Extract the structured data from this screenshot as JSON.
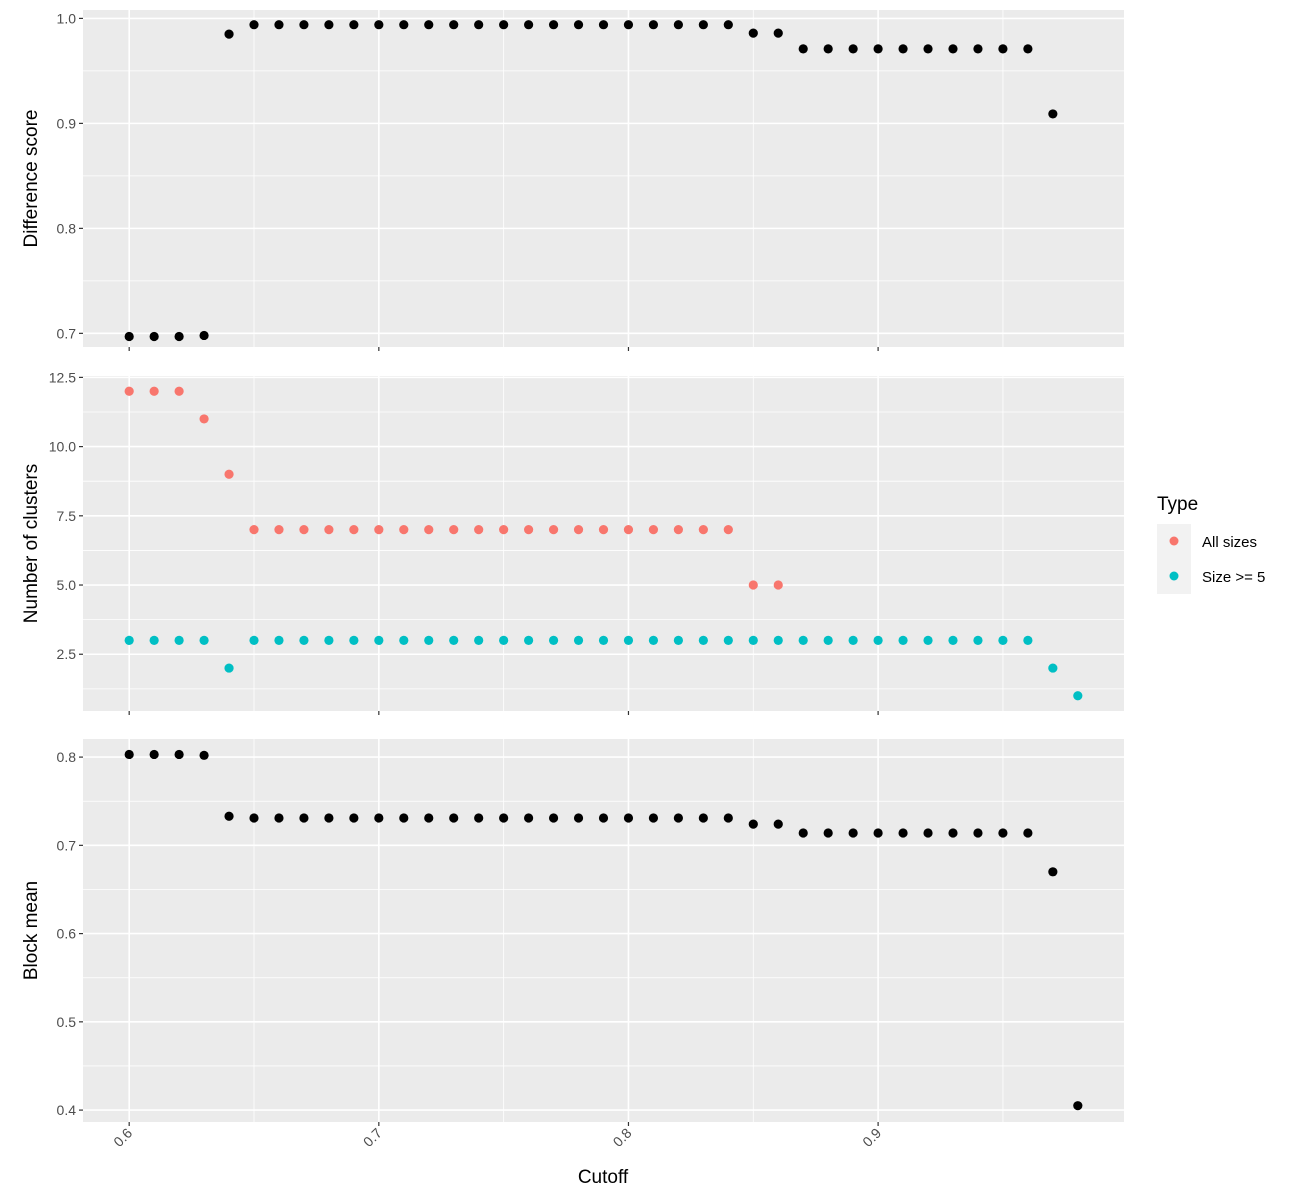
{
  "chart_data": {
    "type": "scatter",
    "x_axis": {
      "label": "Cutoff",
      "ticks": [
        "0.6",
        "0.7",
        "0.8",
        "0.9"
      ],
      "tick_values": [
        0.6,
        0.7,
        0.8,
        0.9
      ],
      "range": [
        0.5815,
        0.9985
      ]
    },
    "panels": [
      {
        "ylabel": "Difference score",
        "ylim": [
          0.687,
          1.008
        ],
        "yticks": [
          "0.7",
          "0.8",
          "0.9",
          "1.0"
        ],
        "ytick_values": [
          0.7,
          0.8,
          0.9,
          1.0
        ],
        "series": [
          {
            "color": "#000000",
            "x": [
              0.6,
              0.61,
              0.62,
              0.63,
              0.64,
              0.65,
              0.66,
              0.67,
              0.68,
              0.69,
              0.7,
              0.71,
              0.72,
              0.73,
              0.74,
              0.75,
              0.76,
              0.77,
              0.78,
              0.79,
              0.8,
              0.81,
              0.82,
              0.83,
              0.84,
              0.85,
              0.86,
              0.87,
              0.88,
              0.89,
              0.9,
              0.91,
              0.92,
              0.93,
              0.94,
              0.95,
              0.96,
              0.97
            ],
            "y": [
              0.697,
              0.697,
              0.697,
              0.698,
              0.985,
              0.994,
              0.994,
              0.994,
              0.994,
              0.994,
              0.994,
              0.994,
              0.994,
              0.994,
              0.994,
              0.994,
              0.994,
              0.994,
              0.994,
              0.994,
              0.994,
              0.994,
              0.994,
              0.994,
              0.994,
              0.986,
              0.986,
              0.971,
              0.971,
              0.971,
              0.971,
              0.971,
              0.971,
              0.971,
              0.971,
              0.971,
              0.971,
              0.909
            ]
          }
        ]
      },
      {
        "ylabel": "Number of clusters",
        "ylim": [
          0.45,
          12.55
        ],
        "yticks": [
          "2.5",
          "5.0",
          "7.5",
          "10.0",
          "12.5"
        ],
        "ytick_values": [
          2.5,
          5.0,
          7.5,
          10.0,
          12.5
        ],
        "series": [
          {
            "name": "All sizes",
            "color": "#F8766D",
            "x": [
              0.6,
              0.61,
              0.62,
              0.63,
              0.64,
              0.65,
              0.66,
              0.67,
              0.68,
              0.69,
              0.7,
              0.71,
              0.72,
              0.73,
              0.74,
              0.75,
              0.76,
              0.77,
              0.78,
              0.79,
              0.8,
              0.81,
              0.82,
              0.83,
              0.84,
              0.85,
              0.86
            ],
            "y": [
              12,
              12,
              12,
              11,
              9,
              7,
              7,
              7,
              7,
              7,
              7,
              7,
              7,
              7,
              7,
              7,
              7,
              7,
              7,
              7,
              7,
              7,
              7,
              7,
              7,
              5,
              5
            ]
          },
          {
            "name": "Size >= 5",
            "color": "#00BFC4",
            "x": [
              0.6,
              0.61,
              0.62,
              0.63,
              0.64,
              0.65,
              0.66,
              0.67,
              0.68,
              0.69,
              0.7,
              0.71,
              0.72,
              0.73,
              0.74,
              0.75,
              0.76,
              0.77,
              0.78,
              0.79,
              0.8,
              0.81,
              0.82,
              0.83,
              0.84,
              0.85,
              0.86,
              0.87,
              0.88,
              0.89,
              0.9,
              0.91,
              0.92,
              0.93,
              0.94,
              0.95,
              0.96,
              0.97,
              0.98
            ],
            "y": [
              3,
              3,
              3,
              3,
              2,
              3,
              3,
              3,
              3,
              3,
              3,
              3,
              3,
              3,
              3,
              3,
              3,
              3,
              3,
              3,
              3,
              3,
              3,
              3,
              3,
              3,
              3,
              3,
              3,
              3,
              3,
              3,
              3,
              3,
              3,
              3,
              3,
              2,
              1
            ]
          }
        ]
      },
      {
        "ylabel": "Block mean",
        "ylim": [
          0.3865,
          0.8205
        ],
        "yticks": [
          "0.4",
          "0.5",
          "0.6",
          "0.7",
          "0.8"
        ],
        "ytick_values": [
          0.4,
          0.5,
          0.6,
          0.7,
          0.8
        ],
        "series": [
          {
            "color": "#000000",
            "x": [
              0.6,
              0.61,
              0.62,
              0.63,
              0.64,
              0.65,
              0.66,
              0.67,
              0.68,
              0.69,
              0.7,
              0.71,
              0.72,
              0.73,
              0.74,
              0.75,
              0.76,
              0.77,
              0.78,
              0.79,
              0.8,
              0.81,
              0.82,
              0.83,
              0.84,
              0.85,
              0.86,
              0.87,
              0.88,
              0.89,
              0.9,
              0.91,
              0.92,
              0.93,
              0.94,
              0.95,
              0.96,
              0.97,
              0.98
            ],
            "y": [
              0.803,
              0.803,
              0.803,
              0.802,
              0.733,
              0.731,
              0.731,
              0.731,
              0.731,
              0.731,
              0.731,
              0.731,
              0.731,
              0.731,
              0.731,
              0.731,
              0.731,
              0.731,
              0.731,
              0.731,
              0.731,
              0.731,
              0.731,
              0.731,
              0.731,
              0.724,
              0.724,
              0.714,
              0.714,
              0.714,
              0.714,
              0.714,
              0.714,
              0.714,
              0.714,
              0.714,
              0.714,
              0.67,
              0.405
            ]
          }
        ]
      }
    ],
    "legend": {
      "title": "Type",
      "position": "right",
      "items": [
        {
          "label": "All sizes",
          "color": "#F8766D"
        },
        {
          "label": "Size >= 5",
          "color": "#00BFC4"
        }
      ]
    },
    "grid": true,
    "panel_background": "#EBEBEB",
    "grid_color": "#FFFFFF"
  }
}
